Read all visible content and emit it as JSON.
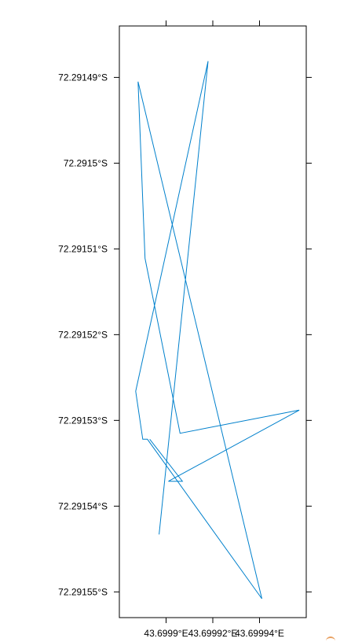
{
  "chart_data": {
    "type": "line",
    "title": "",
    "xlabel": "",
    "ylabel": "",
    "xlim": [
      43.69988,
      43.69996
    ],
    "ylim": [
      -72.291553,
      -72.291484
    ],
    "grid": false,
    "legend": "none",
    "line_color": "#0080cc",
    "x_ticks": [
      {
        "value": 43.6999,
        "label": "43.6999°E"
      },
      {
        "value": 43.69992,
        "label": "43.69992°E"
      },
      {
        "value": 43.69994,
        "label": "43.69994°E"
      }
    ],
    "y_ticks": [
      {
        "value": -72.29149,
        "label": "72.29149°S"
      },
      {
        "value": -72.2915,
        "label": "72.2915°S"
      },
      {
        "value": -72.29151,
        "label": "72.29151°S"
      },
      {
        "value": -72.29152,
        "label": "72.29152°S"
      },
      {
        "value": -72.29153,
        "label": "72.29153°S"
      },
      {
        "value": -72.29154,
        "label": "72.29154°S"
      },
      {
        "value": -72.29155,
        "label": "72.29155°S"
      }
    ],
    "series": [
      {
        "x": [
          43.699897,
          43.699918,
          43.699887,
          43.69989,
          43.699892,
          43.699941,
          43.699888,
          43.699891,
          43.699906,
          43.699957,
          43.699901,
          43.699907,
          43.699893
        ],
        "y": [
          -72.2915433,
          -72.2914881,
          -72.2915266,
          -72.2915322,
          -72.2915322,
          -72.2915508,
          -72.2914905,
          -72.2915111,
          -72.2915315,
          -72.2915288,
          -72.2915371,
          -72.2915371,
          -72.2915322
        ]
      }
    ]
  }
}
